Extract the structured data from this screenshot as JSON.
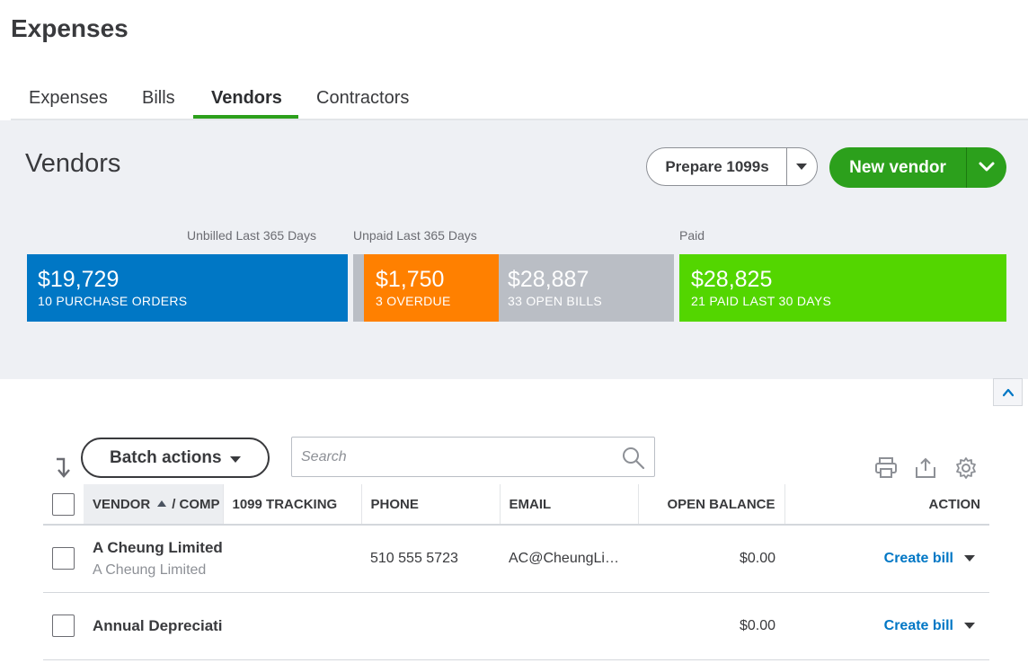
{
  "page": {
    "title": "Expenses"
  },
  "tabs": [
    {
      "label": "Expenses",
      "active": false
    },
    {
      "label": "Bills",
      "active": false
    },
    {
      "label": "Vendors",
      "active": true
    },
    {
      "label": "Contractors",
      "active": false
    }
  ],
  "vendors_panel": {
    "title": "Vendors",
    "prepare_label": "Prepare 1099s",
    "new_vendor_label": "New vendor",
    "accent_color": "#2ca01c"
  },
  "stats": {
    "labels": {
      "unbilled": "Unbilled Last 365 Days",
      "unpaid": "Unpaid Last 365 Days",
      "paid": "Paid"
    },
    "purchase_orders": {
      "amount": "$19,729",
      "caption": "10 PURCHASE ORDERS",
      "color": "#0077c5"
    },
    "overdue": {
      "amount": "$1,750",
      "caption": "3 OVERDUE",
      "color": "#ff8000"
    },
    "open_bills": {
      "amount": "$28,887",
      "caption": "33 OPEN BILLS",
      "color": "#babec5"
    },
    "paid": {
      "amount": "$28,825",
      "caption": "21 PAID LAST 30 DAYS",
      "color": "#53d600"
    }
  },
  "toolbar": {
    "batch_label": "Batch actions",
    "search_placeholder": "Search",
    "icons": [
      "print-icon",
      "export-icon",
      "settings-gear-icon"
    ]
  },
  "table": {
    "headers": {
      "vendor": "VENDOR",
      "company": "/ COMP",
      "tracking": "1099 TRACKING",
      "phone": "PHONE",
      "email": "EMAIL",
      "balance": "OPEN BALANCE",
      "action": "ACTION"
    },
    "rows": [
      {
        "vendor": "A Cheung Limited",
        "company": "A Cheung Limited",
        "tracking": "",
        "phone": "510 555 5723",
        "email": "AC@CheungLi…",
        "balance": "$0.00",
        "action": "Create bill"
      },
      {
        "vendor": "Annual Depreciati",
        "company": "",
        "tracking": "",
        "phone": "",
        "email": "",
        "balance": "$0.00",
        "action": "Create bill"
      }
    ]
  }
}
